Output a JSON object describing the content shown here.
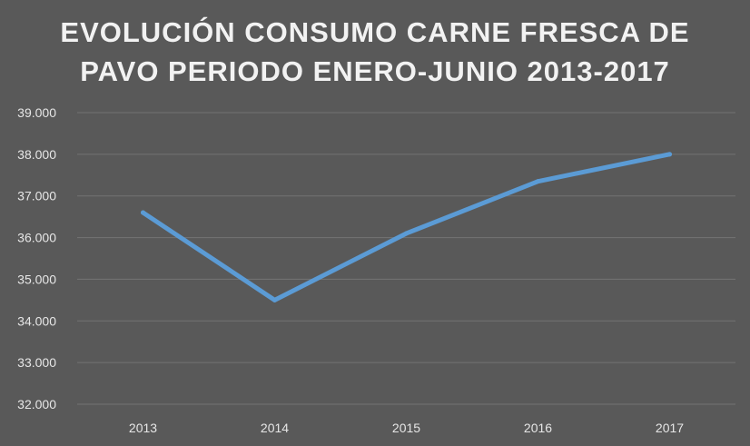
{
  "chart_data": {
    "type": "line",
    "title_lines": [
      "EVOLUCIÓN CONSUMO CARNE FRESCA DE",
      "PAVO PERIODO ENERO-JUNIO 2013-2017"
    ],
    "categories": [
      "2013",
      "2014",
      "2015",
      "2016",
      "2017"
    ],
    "series": [
      {
        "values": [
          36600,
          34500,
          36100,
          37350,
          38000
        ]
      }
    ],
    "ylim": [
      32000,
      39000
    ],
    "yticks": [
      32000,
      33000,
      34000,
      35000,
      36000,
      37000,
      38000,
      39000
    ],
    "ytick_labels": [
      "32.000",
      "33.000",
      "34.000",
      "35.000",
      "36.000",
      "37.000",
      "38.000",
      "39.000"
    ],
    "xlabel": "",
    "ylabel": "",
    "grid": true,
    "legend": "none",
    "colors": {
      "background": "#595959",
      "line": "#5b9bd5",
      "grid": "#737373",
      "text": "#f2f2f2"
    }
  }
}
